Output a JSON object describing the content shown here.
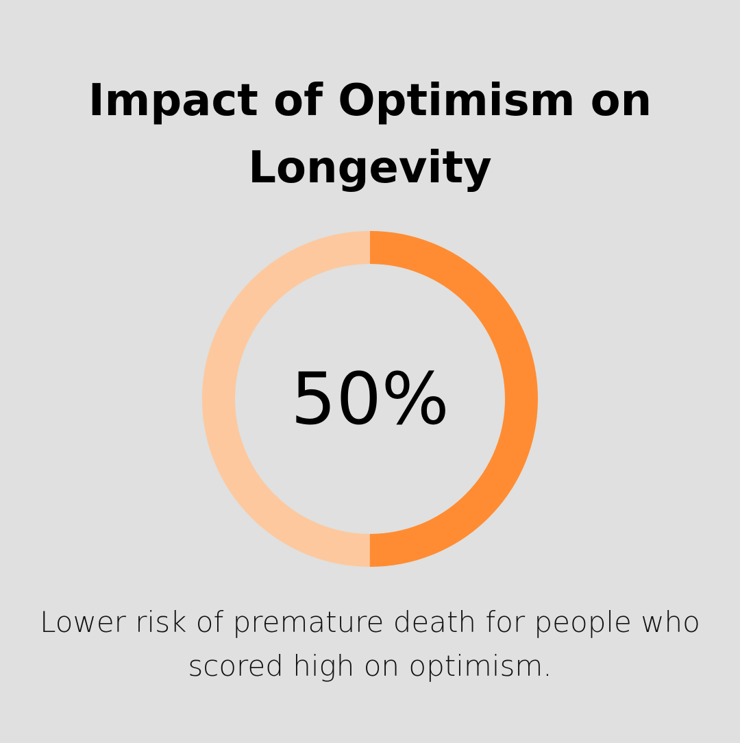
{
  "title": "Impact of Optimism on Longevity",
  "chart_data": {
    "type": "pie",
    "variant": "donut",
    "values": [
      50,
      50
    ],
    "highlighted_value": 50,
    "value_label": "50%",
    "colors": {
      "filled": "#ff8c33",
      "remainder": "#fdc89e"
    }
  },
  "description": "Lower risk of premature death for people who scored high on optimism.",
  "colors": {
    "background": "#dfe0df"
  }
}
